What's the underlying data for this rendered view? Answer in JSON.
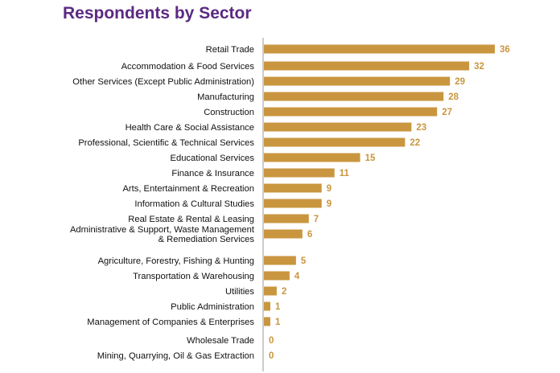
{
  "chart_data": {
    "type": "bar",
    "orientation": "horizontal",
    "title": "Respondents by Sector",
    "xlabel": "",
    "ylabel": "",
    "grid": false,
    "legend": "none",
    "xlim": [
      0,
      36
    ],
    "categories": [
      [
        "Retail Trade"
      ],
      [
        "Accommodation & Food Services"
      ],
      [
        "Other Services (Except Public Administration)"
      ],
      [
        "Manufacturing"
      ],
      [
        "Construction"
      ],
      [
        "Health Care & Social Assistance"
      ],
      [
        "Professional, Scientific & Technical Services"
      ],
      [
        "Educational Services"
      ],
      [
        "Finance & Insurance"
      ],
      [
        "Arts, Entertainment & Recreation"
      ],
      [
        "Information & Cultural Studies"
      ],
      [
        "Real Estate & Rental & Leasing"
      ],
      [
        "Administrative & Support, Waste Management",
        "& Remediation Services"
      ],
      [
        "Agriculture, Forestry, Fishing & Hunting"
      ],
      [
        "Transportation & Warehousing"
      ],
      [
        "Utilities"
      ],
      [
        "Public Administration"
      ],
      [
        "Management of Companies & Enterprises"
      ],
      [
        "Wholesale Trade"
      ],
      [
        "Mining, Quarrying, Oil & Gas Extraction"
      ]
    ],
    "values": [
      36,
      32,
      29,
      28,
      27,
      23,
      22,
      15,
      11,
      9,
      9,
      7,
      6,
      5,
      4,
      2,
      1,
      1,
      0,
      0
    ]
  },
  "colors": {
    "title": "#5b2a82",
    "bar": "#c9963f",
    "value_label": "#c9963f",
    "axis": "#999999",
    "category_text": "#111111"
  }
}
